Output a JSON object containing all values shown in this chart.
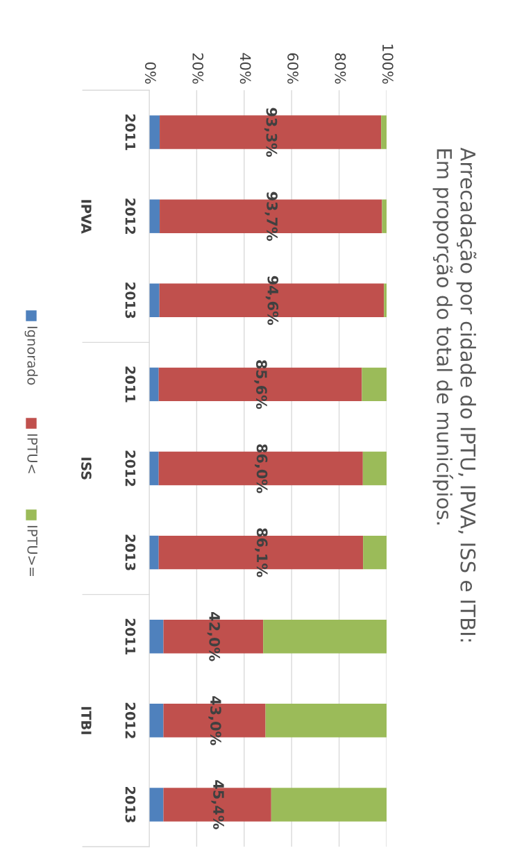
{
  "chart_data": {
    "type": "bar",
    "orientation": "horizontal",
    "stacked": true,
    "title": "Arrecadação por cidade do IPTU, IPVA, ISS e ITBI:\nEm proporção do total de municípios.",
    "categories": [
      "2011",
      "2012",
      "2013",
      "2011",
      "2012",
      "2013",
      "2011",
      "2012",
      "2013"
    ],
    "annotations": [
      "IPVA",
      "ISS",
      "ITBI"
    ],
    "series": [
      {
        "name": "Ignorado",
        "color": "#4f81bd",
        "values": [
          4.4,
          4.4,
          4.3,
          4.0,
          4.0,
          4.0,
          6.0,
          6.0,
          6.0
        ]
      },
      {
        "name": "IPTU<",
        "color": "#c0504d",
        "values": [
          93.3,
          93.7,
          94.6,
          85.6,
          86.0,
          86.1,
          42.0,
          43.0,
          45.4
        ],
        "value_labels": [
          "93,3%",
          "93,7%",
          "94,6%",
          "85,6%",
          "86,0%",
          "86,1%",
          "42,0%",
          "43,0%",
          "45,4%"
        ]
      },
      {
        "name": "IPTU>=",
        "color": "#9bbb59",
        "values": [
          2.3,
          1.9,
          1.1,
          10.4,
          10.0,
          9.9,
          52.0,
          51.0,
          48.6
        ]
      }
    ],
    "xlim": [
      0,
      100
    ],
    "xticks": [
      {
        "value": 0,
        "label": "0%"
      },
      {
        "value": 20,
        "label": "20%"
      },
      {
        "value": 40,
        "label": "40%"
      },
      {
        "value": 60,
        "label": "60%"
      },
      {
        "value": 80,
        "label": "80%"
      },
      {
        "value": 100,
        "label": "100%"
      }
    ],
    "grid": "x",
    "legend": "left"
  }
}
